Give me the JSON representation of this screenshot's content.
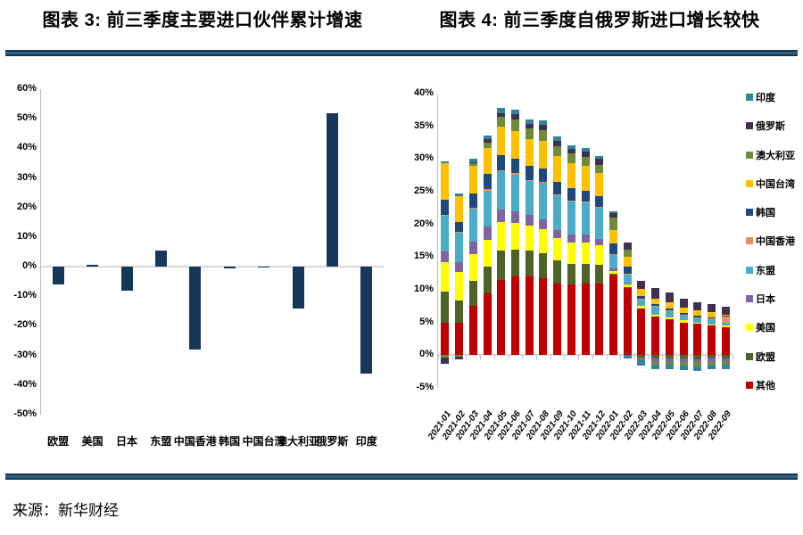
{
  "page": {
    "source": "来源：新华财经"
  },
  "chart_data": [
    {
      "type": "bar",
      "title": "图表 3: 前三季度主要进口伙伴累计增速",
      "categories": [
        "欧盟",
        "美国",
        "日本",
        "东盟",
        "中国香港",
        "韩国",
        "中国台湾",
        "澳大利亚",
        "俄罗斯",
        "印度"
      ],
      "values": [
        -6,
        0.5,
        -8,
        5.5,
        -28,
        -0.5,
        -0.2,
        -14,
        52,
        -36
      ],
      "unit": "%",
      "bar_color": "#16365C",
      "xlabel": "",
      "ylabel": "",
      "ylim": [
        -50,
        60
      ],
      "ytick_step": 10,
      "yticks": [
        "60%",
        "50%",
        "40%",
        "30%",
        "20%",
        "10%",
        "0%",
        "-10%",
        "-20%",
        "-30%",
        "-40%",
        "-50%"
      ],
      "grid": false,
      "axis_color": "#BFBFBF"
    },
    {
      "type": "stacked-bar",
      "title": "图表 4: 前三季度自俄罗斯进口增长较快",
      "categories": [
        "2021-01",
        "2021-02",
        "2021-03",
        "2021-04",
        "2021-05",
        "2021-06",
        "2021-07",
        "2021-08",
        "2021-09",
        "2021-10",
        "2021-11",
        "2021-12",
        "2022-01",
        "2022-02",
        "2022-03",
        "2022-04",
        "2022-05",
        "2022-06",
        "2022-07",
        "2022-08",
        "2022-09"
      ],
      "unit": "%",
      "series": [
        {
          "name": "其他",
          "color": "#C00000",
          "values": [
            5.0,
            5.0,
            7.5,
            9.5,
            11.5,
            12.0,
            12.0,
            11.8,
            11.0,
            10.8,
            11.0,
            11.0,
            12.2,
            10.3,
            7.2,
            5.9,
            5.5,
            5.0,
            4.8,
            4.5,
            4.3
          ]
        },
        {
          "name": "欧盟",
          "color": "#4F6228",
          "values": [
            4.7,
            3.4,
            3.8,
            4.0,
            4.5,
            4.2,
            4.0,
            3.8,
            3.5,
            3.2,
            3.0,
            2.8,
            0.2,
            0.1,
            -0.3,
            -0.5,
            -0.5,
            -0.5,
            -0.6,
            -0.5,
            -0.5
          ]
        },
        {
          "name": "美国",
          "color": "#FFFF00",
          "values": [
            4.5,
            4.3,
            4.2,
            4.2,
            4.3,
            4.0,
            3.8,
            3.7,
            3.4,
            3.2,
            3.2,
            3.0,
            0.5,
            0.4,
            0.3,
            0.3,
            0.3,
            0.3,
            0.2,
            0.2,
            0.2
          ]
        },
        {
          "name": "日本",
          "color": "#8064A2",
          "values": [
            1.7,
            1.5,
            1.8,
            2.0,
            2.0,
            1.8,
            1.6,
            1.5,
            1.3,
            1.2,
            1.2,
            1.0,
            0.4,
            0.1,
            -0.3,
            -0.5,
            -0.5,
            -0.5,
            -0.5,
            -0.5,
            -0.5
          ]
        },
        {
          "name": "东盟",
          "color": "#4BACC6",
          "values": [
            5.4,
            4.5,
            5.2,
            5.5,
            5.8,
            5.6,
            5.2,
            5.5,
            5.3,
            5.2,
            5.0,
            4.8,
            2.1,
            1.5,
            1.0,
            1.3,
            1.0,
            0.8,
            0.7,
            0.8,
            0.4
          ]
        },
        {
          "name": "中国香港",
          "color": "#E8935C",
          "values": [
            0.1,
            0.1,
            0.1,
            0.2,
            0.2,
            0.2,
            0.2,
            0.2,
            0.1,
            0.1,
            0.1,
            0.1,
            0.1,
            0.1,
            0.1,
            0.1,
            0.1,
            0.1,
            0.1,
            0.1,
            1.0
          ]
        },
        {
          "name": "韩国",
          "color": "#1F497D",
          "values": [
            2.4,
            1.5,
            2.1,
            2.3,
            2.3,
            2.3,
            2.2,
            2.1,
            1.9,
            1.8,
            1.7,
            1.6,
            1.6,
            1.0,
            0.5,
            0.2,
            0.2,
            0.3,
            0.2,
            0.2,
            0.1
          ]
        },
        {
          "name": "中国台湾",
          "color": "#FFC000",
          "values": [
            5.5,
            4.0,
            4.3,
            4.0,
            4.3,
            4.2,
            4.0,
            4.2,
            4.0,
            3.8,
            3.7,
            3.5,
            2.1,
            1.5,
            1.0,
            0.9,
            1.0,
            0.8,
            0.8,
            0.8,
            0.2
          ]
        },
        {
          "name": "澳大利亚",
          "color": "#6E8B3D",
          "values": [
            -0.3,
            -0.2,
            0.3,
            0.8,
            1.5,
            1.8,
            1.7,
            1.6,
            1.5,
            1.5,
            1.4,
            1.3,
            1.8,
            1.2,
            -0.2,
            -0.4,
            -0.5,
            -0.6,
            -0.6,
            -0.5,
            -0.5
          ]
        },
        {
          "name": "俄罗斯",
          "color": "#403152",
          "values": [
            -1.0,
            -0.5,
            0.2,
            0.5,
            0.6,
            0.7,
            0.7,
            0.8,
            0.8,
            0.8,
            0.9,
            1.0,
            0.7,
            1.0,
            1.3,
            1.6,
            1.5,
            1.4,
            1.3,
            1.2,
            1.2
          ]
        },
        {
          "name": "印度",
          "color": "#31849B",
          "values": [
            0.4,
            0.4,
            0.5,
            0.6,
            0.8,
            0.8,
            0.7,
            0.7,
            0.6,
            0.5,
            0.5,
            0.4,
            0.3,
            -0.5,
            -0.8,
            -0.7,
            -0.7,
            -0.7,
            -0.7,
            -0.7,
            -0.7
          ]
        }
      ],
      "legend": [
        "印度",
        "俄罗斯",
        "澳大利亚",
        "中国台湾",
        "韩国",
        "中国香港",
        "东盟",
        "日本",
        "美国",
        "欧盟",
        "其他"
      ],
      "legend_position": "right",
      "xlabel": "",
      "ylabel": "",
      "ylim": [
        -5,
        40
      ],
      "ytick_step": 5,
      "yticks": [
        "40%",
        "35%",
        "30%",
        "25%",
        "20%",
        "15%",
        "10%",
        "5%",
        "0%",
        "-5%"
      ],
      "grid": false,
      "axis_color": "#BFBFBF"
    }
  ]
}
